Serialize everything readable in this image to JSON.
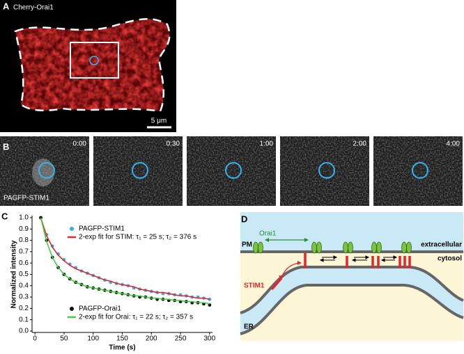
{
  "panel_a": {
    "label": "A",
    "title": "Cherry-Orai1",
    "scale_bar": "5 μm"
  },
  "panel_b": {
    "label": "B",
    "caption": "PAGFP-STIM1",
    "times": [
      "0:00",
      "0:30",
      "1:00",
      "2:00",
      "4:00"
    ]
  },
  "chart_data": {
    "type": "scatter",
    "label": "C",
    "x_label": "Time (s)",
    "y_label": "Normalized intensity",
    "x": [
      10,
      20,
      30,
      40,
      50,
      60,
      70,
      80,
      90,
      100,
      110,
      120,
      130,
      140,
      150,
      160,
      170,
      180,
      190,
      200,
      210,
      220,
      230,
      240,
      250,
      260,
      270,
      280,
      290,
      300
    ],
    "series": [
      {
        "name": "PAGFP-STIM1",
        "color": "#35aee8",
        "mode": "markers",
        "values": [
          1.0,
          0.85,
          0.75,
          0.68,
          0.63,
          0.59,
          0.56,
          0.53,
          0.51,
          0.49,
          0.47,
          0.45,
          0.43,
          0.42,
          0.41,
          0.4,
          0.38,
          0.37,
          0.36,
          0.35,
          0.34,
          0.33,
          0.33,
          0.32,
          0.32,
          0.31,
          0.3,
          0.3,
          0.29,
          0.28
        ]
      },
      {
        "name": "2-exp fit for STIM: τ₁ = 25 s; τ₂ = 376 s",
        "color": "#e3262b",
        "mode": "line",
        "values": [
          1.0,
          0.84,
          0.74,
          0.67,
          0.62,
          0.58,
          0.55,
          0.53,
          0.51,
          0.49,
          0.47,
          0.45,
          0.44,
          0.42,
          0.41,
          0.4,
          0.39,
          0.37,
          0.36,
          0.35,
          0.34,
          0.34,
          0.33,
          0.32,
          0.31,
          0.31,
          0.3,
          0.29,
          0.29,
          0.28
        ]
      },
      {
        "name": "PAGFP-Orai1",
        "color": "#111111",
        "mode": "markers",
        "values": [
          1.0,
          0.8,
          0.65,
          0.56,
          0.5,
          0.46,
          0.43,
          0.41,
          0.39,
          0.38,
          0.37,
          0.36,
          0.35,
          0.34,
          0.33,
          0.32,
          0.31,
          0.3,
          0.3,
          0.29,
          0.28,
          0.28,
          0.27,
          0.27,
          0.26,
          0.26,
          0.25,
          0.25,
          0.24,
          0.23
        ]
      },
      {
        "name": "2-exp fit for Orai: τ₁ = 22 s; τ₂ = 357 s",
        "color": "#3fcf3f",
        "mode": "line",
        "values": [
          1.0,
          0.79,
          0.65,
          0.56,
          0.5,
          0.46,
          0.43,
          0.41,
          0.39,
          0.38,
          0.37,
          0.36,
          0.35,
          0.34,
          0.33,
          0.32,
          0.31,
          0.31,
          0.3,
          0.29,
          0.29,
          0.28,
          0.28,
          0.27,
          0.27,
          0.26,
          0.26,
          0.25,
          0.25,
          0.24
        ]
      }
    ],
    "xlim": [
      -5,
      305
    ],
    "xticks": [
      0,
      50,
      100,
      150,
      200,
      250,
      300
    ],
    "ylim": [
      0,
      1.0
    ],
    "yticks": [
      {
        "value": 0,
        "label": "0.0"
      },
      0.1,
      0.2,
      0.3,
      0.4,
      0.5,
      0.6,
      0.7,
      0.8,
      0.9,
      {
        "value": 1,
        "label": "1.0"
      }
    ]
  },
  "panel_d": {
    "label": "D",
    "orai": "Orai1",
    "pm": "PM",
    "extracellular": "extracellular",
    "cytosol": "cytosol",
    "stim": "STIM1",
    "er": "ER"
  }
}
